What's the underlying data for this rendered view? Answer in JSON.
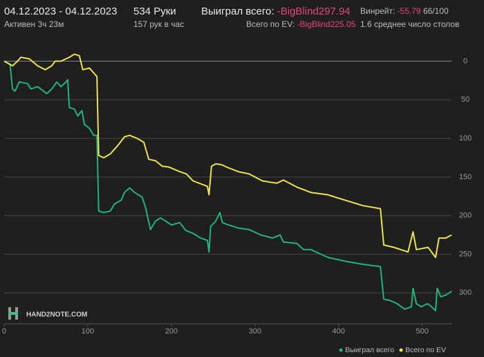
{
  "header": {
    "date_range": "04.12.2023 - 04.12.2023",
    "active_time": "Активен 3ч 23м",
    "hands": "534 Руки",
    "hands_per_hour": "157 рук в час",
    "won_label": "Выиграл всего:",
    "won_value": "-BigBlind297.94",
    "ev_label": "Всего по EV:",
    "ev_value": "-BigBlind225.05",
    "winrate_label": "Винрейт:",
    "winrate_value": "-55.79",
    "winrate_confidence": "66/100",
    "tables": "1.6 среднее число столов",
    "logo": "HAND2NOTE.COM"
  },
  "chart_data": {
    "type": "line",
    "xlim": [
      0,
      535
    ],
    "xticks": [
      0,
      100,
      200,
      300,
      400,
      500
    ],
    "ylim": [
      -12,
      340
    ],
    "yticks": [
      0,
      50,
      100,
      150,
      200,
      250,
      300
    ],
    "y_inverted": true,
    "grid": true,
    "legend": "bottom-right",
    "series": [
      {
        "name": "Выиграл всего",
        "color": "#21b57a",
        "x": [
          0,
          7,
          10,
          13,
          18,
          28,
          32,
          40,
          51,
          57,
          63,
          68,
          74,
          76,
          78,
          84,
          88,
          93,
          96,
          102,
          107,
          111,
          113,
          119,
          127,
          132,
          140,
          144,
          150,
          156,
          165,
          169,
          175,
          181,
          187,
          193,
          200,
          210,
          217,
          226,
          235,
          243,
          245,
          247,
          253,
          258,
          261,
          268,
          280,
          293,
          307,
          321,
          330,
          334,
          350,
          358,
          367,
          387,
          408,
          429,
          450,
          454,
          462,
          470,
          479,
          487,
          489,
          493,
          499,
          506,
          509,
          516,
          518,
          522,
          528,
          535
        ],
        "values": [
          0,
          4,
          36,
          39,
          27,
          29,
          36,
          33,
          42,
          36,
          27,
          33,
          27,
          24,
          60,
          62,
          71,
          64,
          82,
          87,
          96,
          96,
          194,
          196,
          194,
          185,
          180,
          170,
          164,
          170,
          176,
          189,
          218,
          207,
          203,
          207,
          212,
          209,
          219,
          223,
          229,
          232,
          247,
          214,
          207,
          196,
          209,
          212,
          216,
          218,
          225,
          229,
          225,
          234,
          236,
          244,
          244,
          254,
          259,
          263,
          266,
          308,
          310,
          314,
          321,
          318,
          294,
          314,
          318,
          314,
          316,
          323,
          294,
          305,
          303,
          298
        ]
      },
      {
        "name": "Всего по EV",
        "color": "#f0e34f",
        "x": [
          0,
          10,
          16,
          20,
          30,
          40,
          49,
          57,
          61,
          68,
          78,
          84,
          90,
          94,
          102,
          111,
          113,
          119,
          127,
          136,
          144,
          150,
          159,
          167,
          173,
          181,
          189,
          197,
          210,
          218,
          226,
          243,
          245,
          248,
          253,
          260,
          268,
          280,
          293,
          309,
          326,
          334,
          350,
          367,
          387,
          408,
          429,
          450,
          454,
          466,
          483,
          489,
          493,
          507,
          516,
          520,
          528,
          535
        ],
        "values": [
          0,
          6,
          0,
          -5,
          -3,
          6,
          11,
          6,
          0,
          0,
          -5,
          -9,
          -7,
          11,
          9,
          20,
          122,
          125,
          120,
          109,
          98,
          96,
          100,
          105,
          127,
          129,
          136,
          137,
          143,
          146,
          155,
          162,
          173,
          136,
          133,
          134,
          138,
          143,
          146,
          155,
          158,
          154,
          163,
          170,
          173,
          180,
          187,
          191,
          238,
          241,
          247,
          221,
          244,
          241,
          254,
          229,
          229,
          225
        ]
      }
    ]
  }
}
